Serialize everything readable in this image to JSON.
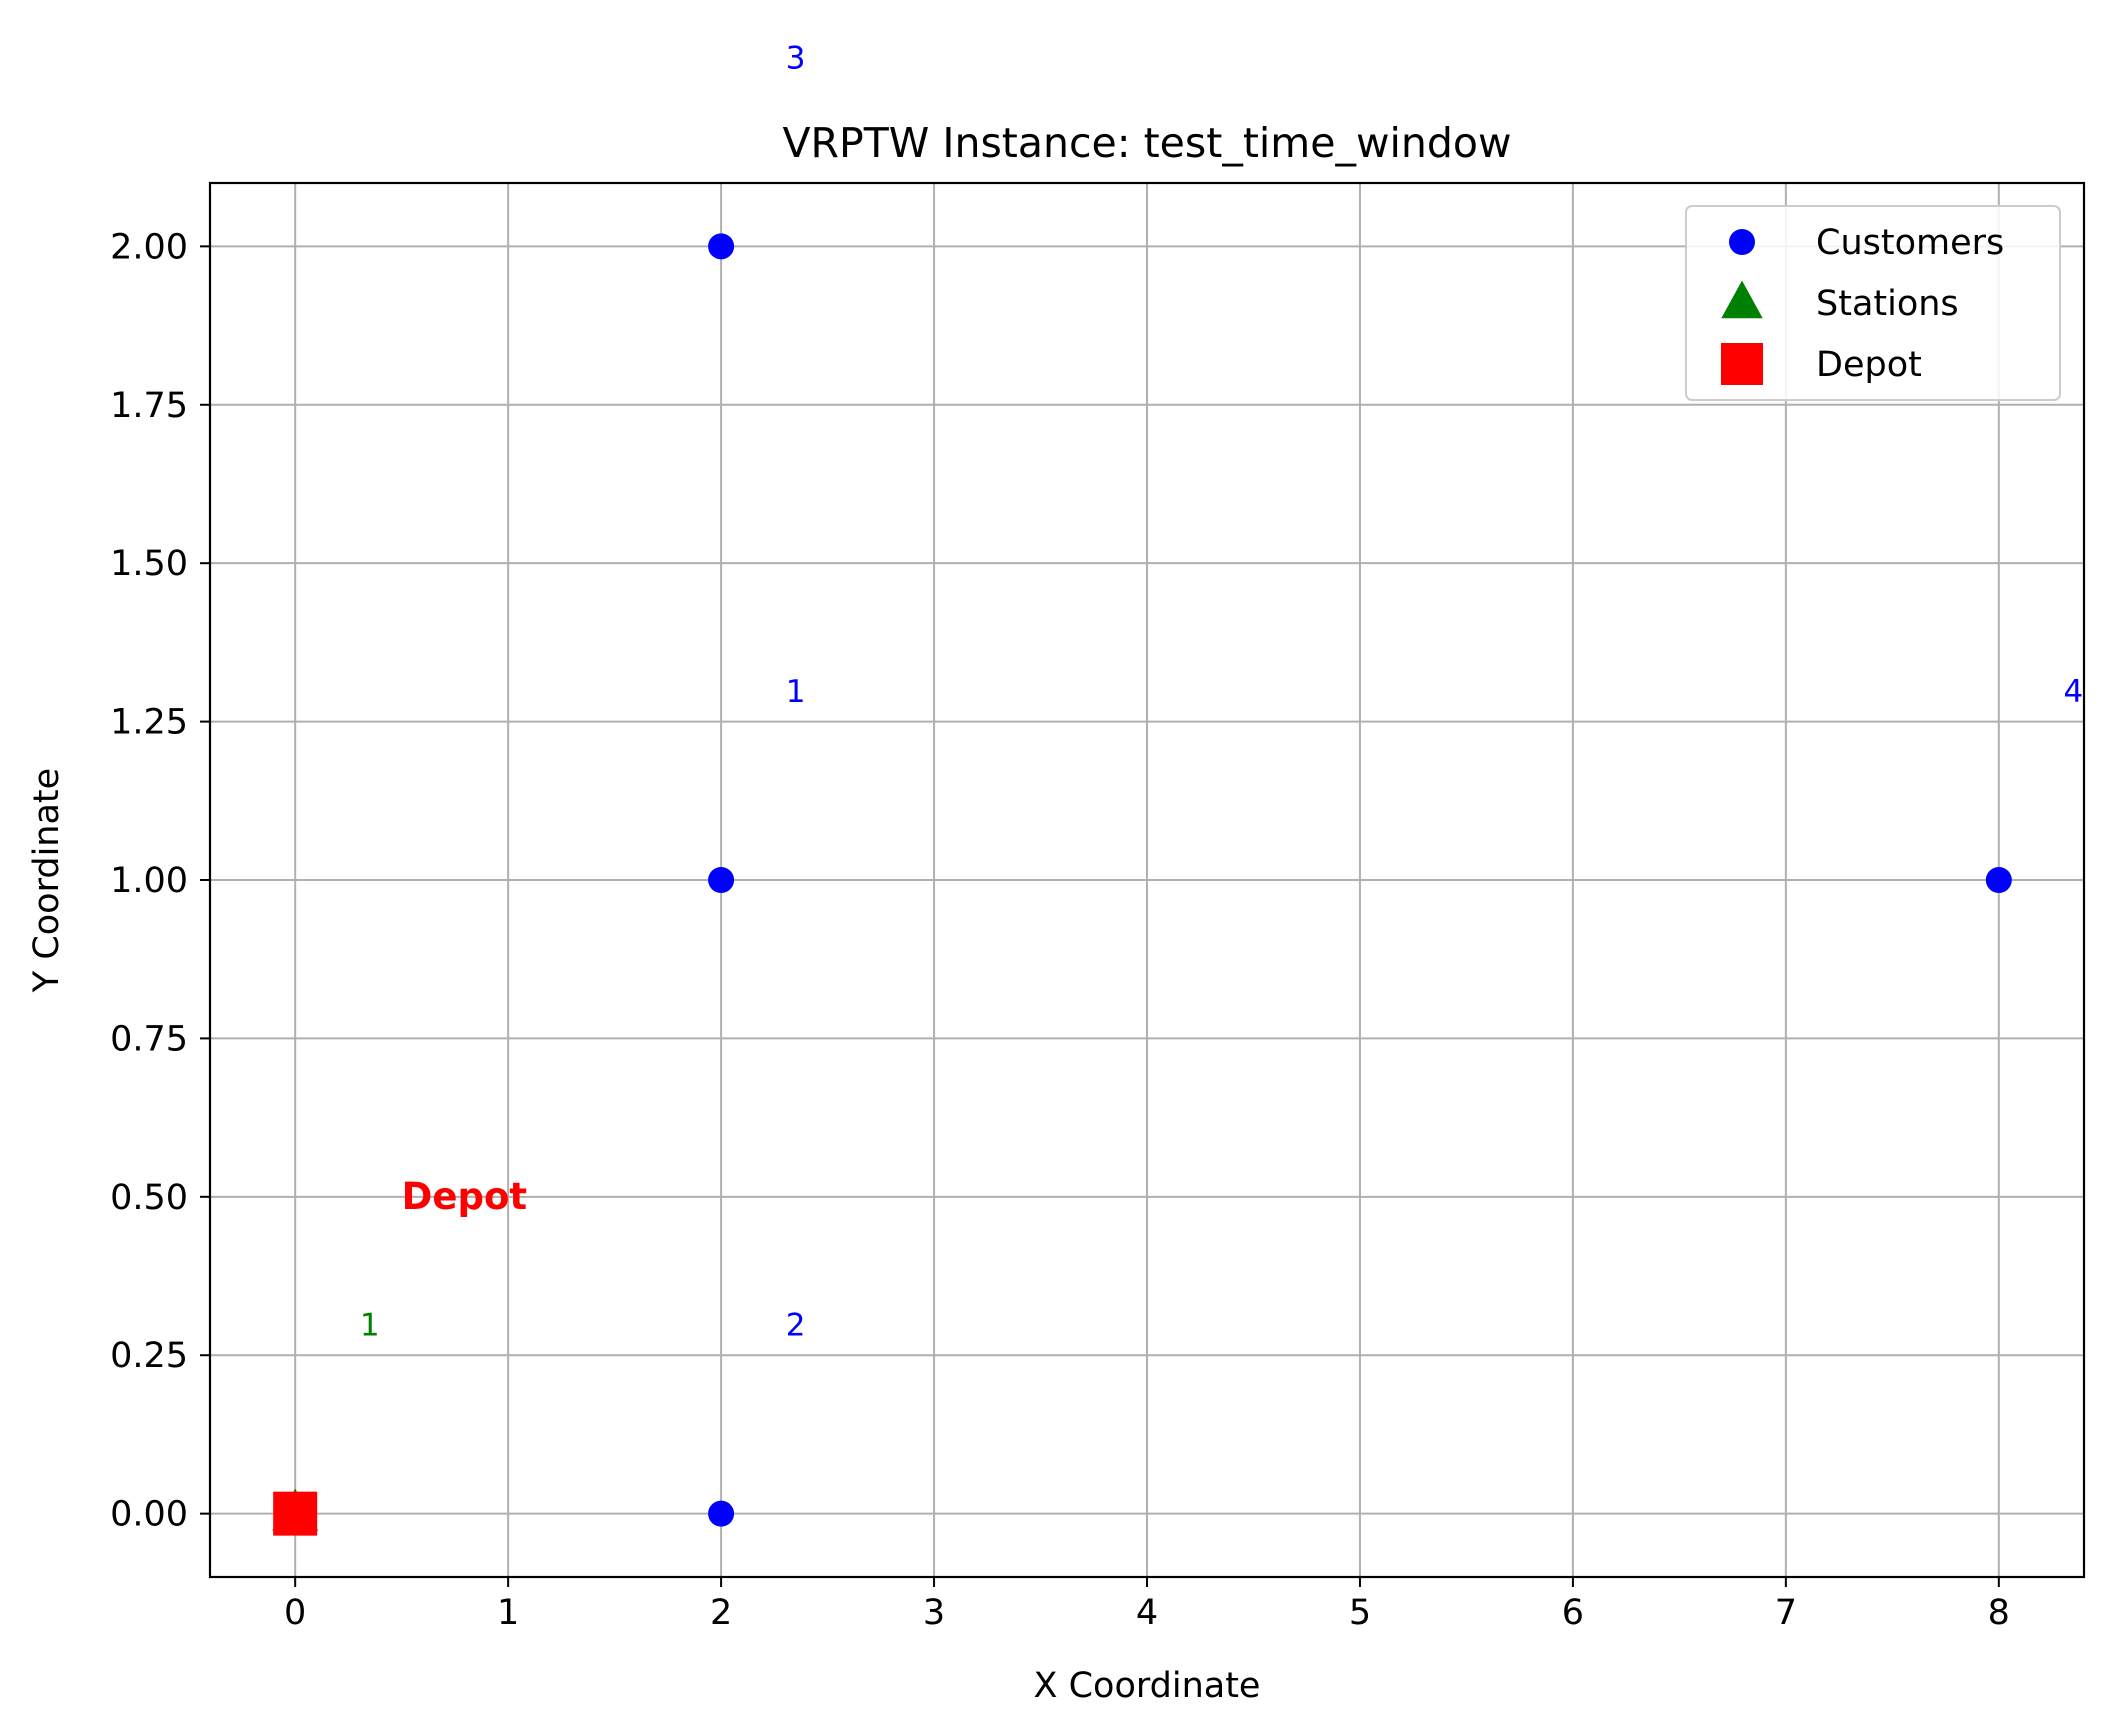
{
  "chart_data": {
    "type": "scatter",
    "title": "VRPTW Instance: test_time_window",
    "xlabel": "X Coordinate",
    "ylabel": "Y Coordinate",
    "xlim": [
      -0.4,
      8.4
    ],
    "ylim": [
      -0.1,
      2.1
    ],
    "x_ticks": [
      0,
      1,
      2,
      3,
      4,
      5,
      6,
      7,
      8
    ],
    "x_tick_labels": [
      "0",
      "1",
      "2",
      "3",
      "4",
      "5",
      "6",
      "7",
      "8"
    ],
    "y_ticks": [
      0,
      0.25,
      0.5,
      0.75,
      1,
      1.25,
      1.5,
      1.75,
      2
    ],
    "y_tick_labels": [
      "0.00",
      "0.25",
      "0.50",
      "0.75",
      "1.00",
      "1.25",
      "1.50",
      "1.75",
      "2.00"
    ],
    "grid": true,
    "legend_position": "top-right",
    "series": [
      {
        "name": "Customers",
        "marker": "circle",
        "color": "#0000ff",
        "points": [
          {
            "x": 2,
            "y": 1,
            "label": "1"
          },
          {
            "x": 2,
            "y": 0,
            "label": "2"
          },
          {
            "x": 2,
            "y": 2,
            "label": "3"
          },
          {
            "x": 8,
            "y": 1,
            "label": "4"
          }
        ]
      },
      {
        "name": "Stations",
        "marker": "triangle",
        "color": "#008000",
        "points": [
          {
            "x": 0,
            "y": 0,
            "label": "1"
          }
        ]
      },
      {
        "name": "Depot",
        "marker": "square",
        "color": "#ff0000",
        "points": [
          {
            "x": 0,
            "y": 0,
            "label": "Depot"
          }
        ]
      }
    ]
  }
}
